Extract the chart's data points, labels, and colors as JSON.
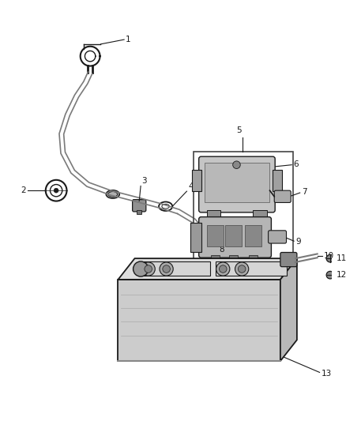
{
  "bg_color": "#ffffff",
  "lc": "#5a5a5a",
  "dc": "#1a1a1a",
  "gc": "#888888",
  "figsize": [
    4.38,
    5.33
  ],
  "dpi": 100,
  "cable_gray": "#7a7a7a",
  "box_gray": "#c8c8c8",
  "bat_face": "#cccccc",
  "bat_top": "#dddddd",
  "bat_side": "#aaaaaa",
  "mod_light": "#bbbbbb",
  "mod_dark": "#888888"
}
